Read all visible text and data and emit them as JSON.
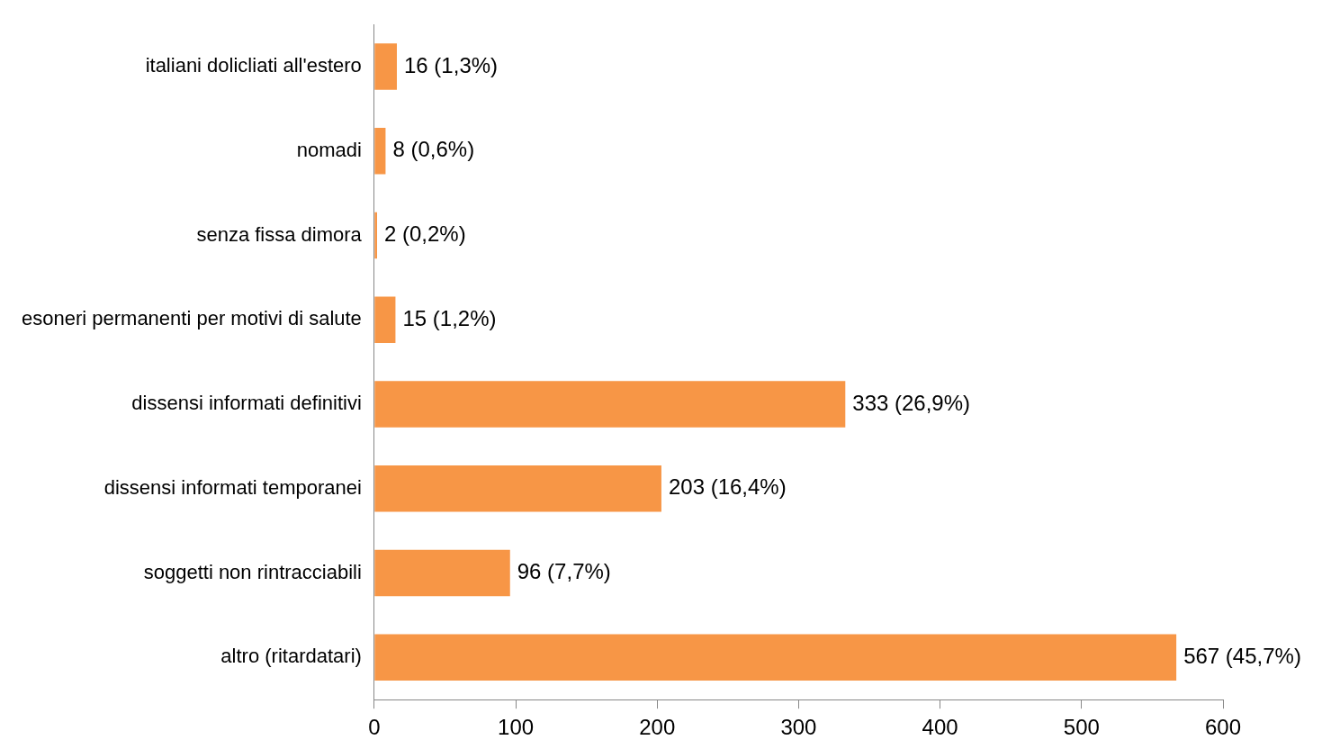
{
  "chart_data": {
    "type": "bar",
    "orientation": "horizontal",
    "categories": [
      "italiani dolicliati all'estero",
      "nomadi",
      "senza fissa dimora",
      "esoneri permanenti per motivi di salute",
      "dissensi informati definitivi",
      "dissensi informati temporanei",
      "soggetti non rintracciabili",
      "altro (ritardatari)"
    ],
    "values": [
      16,
      8,
      2,
      15,
      333,
      203,
      96,
      567
    ],
    "value_labels": [
      "16 (1,3%)",
      "8 (0,6%)",
      "2 (0,2%)",
      "15 (1,2%)",
      "333 (26,9%)",
      "203 (16,4%)",
      "96 (7,7%)",
      "567 (45,7%)"
    ],
    "color": "#f79646",
    "xlim": [
      0,
      600
    ],
    "xticks": [
      0,
      100,
      200,
      300,
      400,
      500,
      600
    ],
    "grid": false,
    "legend": false
  }
}
